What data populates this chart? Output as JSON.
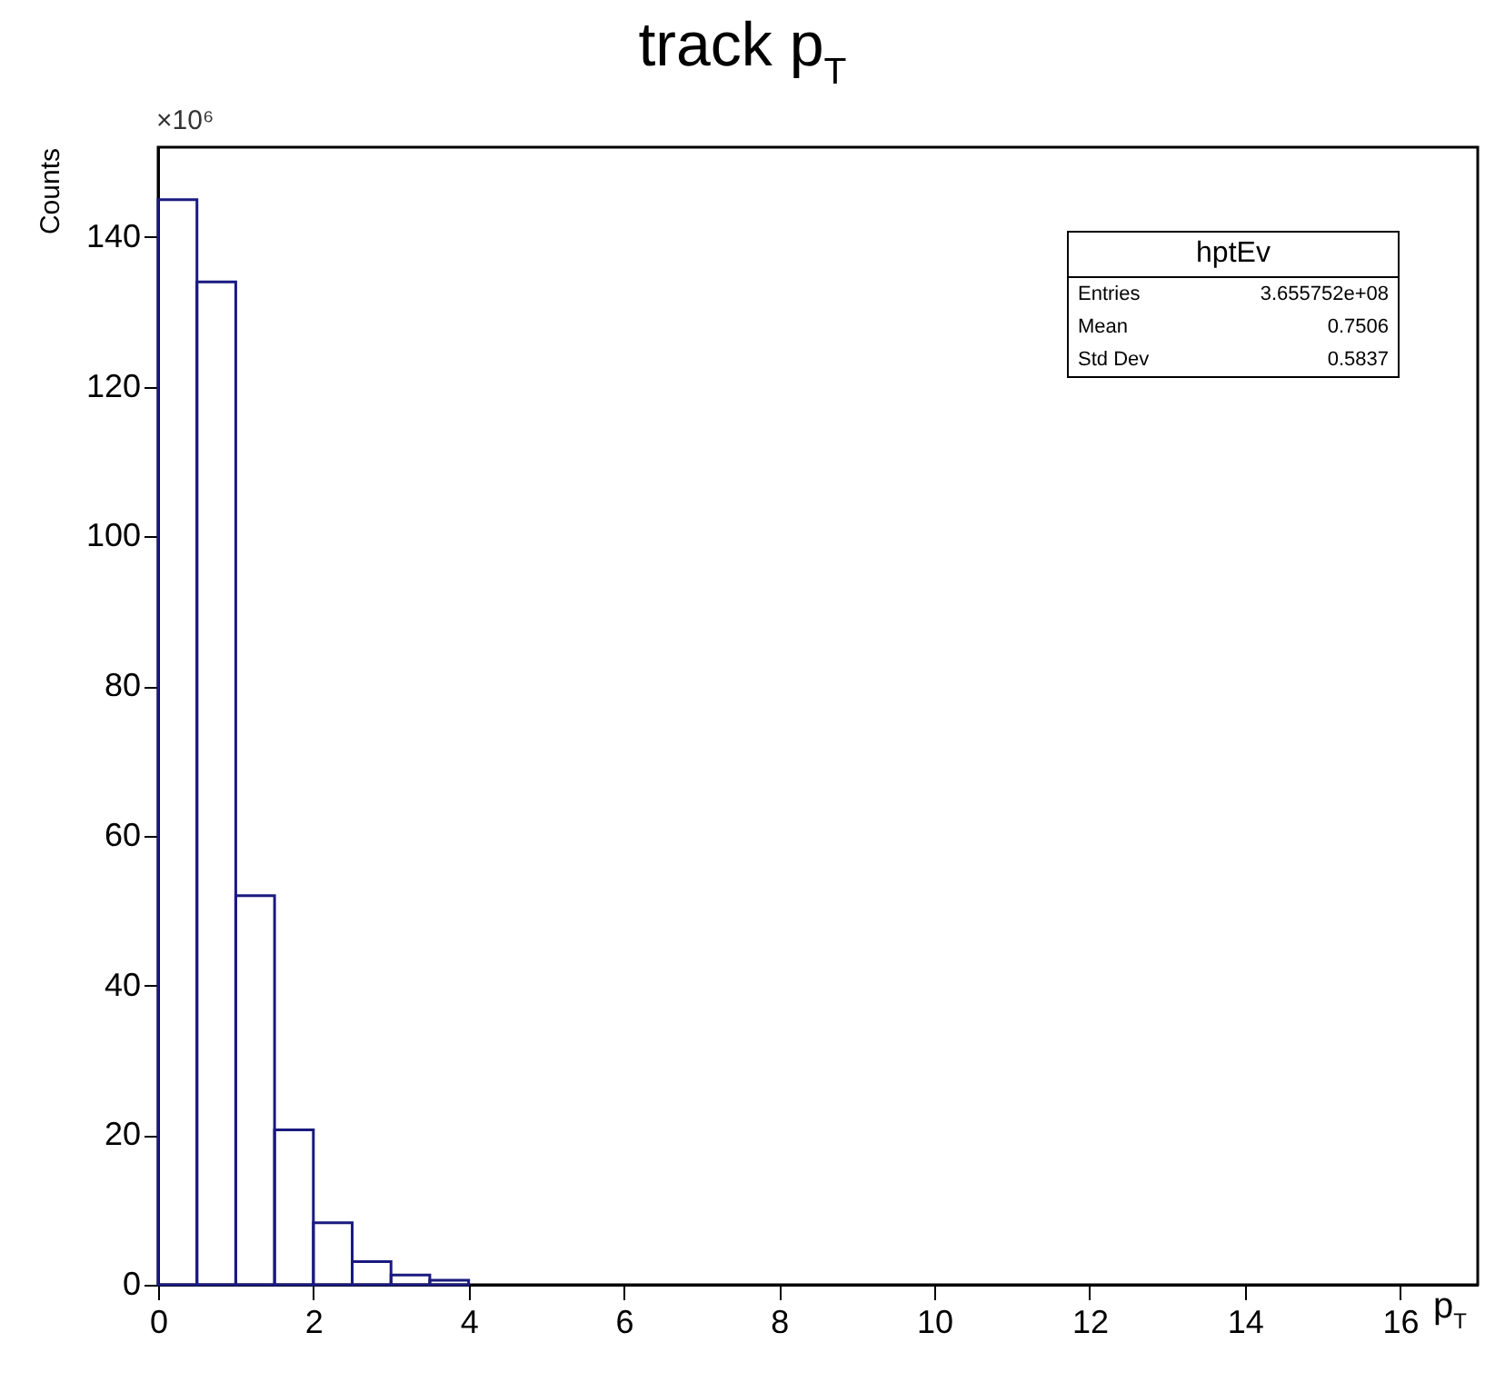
{
  "chart_data": {
    "type": "histogram",
    "title": "track p$_{T}$",
    "xlabel": "p$_{T}$",
    "ylabel": "Counts",
    "annotations": [
      "×10⁶",
      "hptEv",
      "Entries",
      "3.655752e+08",
      "Mean",
      "0.7506",
      "Std Dev",
      "0.5837"
    ],
    "bins": [
      0,
      0.5,
      1,
      1.5,
      2,
      2.5,
      3,
      3.5,
      4
    ],
    "values": [
      145,
      134,
      52,
      20.7,
      8.3,
      3.1,
      1.3,
      0.6
    ],
    "color": "#1a1a80",
    "xlim": [
      0,
      17
    ],
    "xticks": [
      0,
      2,
      4,
      6,
      8,
      10,
      12,
      14,
      16
    ],
    "ylim": [
      0,
      152
    ],
    "yticks": [
      0,
      20,
      40,
      60,
      80,
      100,
      120,
      140
    ]
  }
}
